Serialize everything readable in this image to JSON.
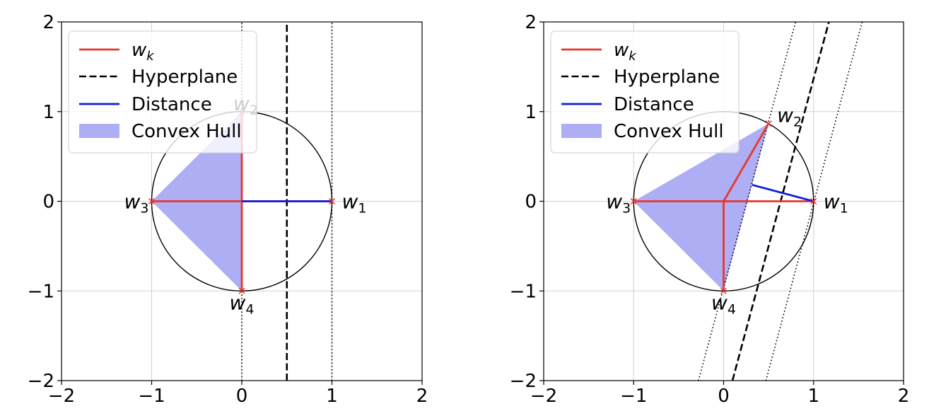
{
  "chart_data": [
    {
      "type": "line",
      "xlim": [
        -2,
        2
      ],
      "ylim": [
        -2,
        2
      ],
      "xticks": [
        "−2",
        "−1",
        "0",
        "1",
        "2"
      ],
      "yticks": [
        "−2",
        "−1",
        "0",
        "1",
        "2"
      ],
      "grid": true,
      "legend_position": "top-left",
      "legend": [
        "w_k",
        "Hyperplane",
        "Distance",
        "Convex Hull"
      ],
      "unit_circle": {
        "center": [
          0,
          0
        ],
        "radius": 1
      },
      "points": [
        {
          "name": "w_1",
          "x": 1,
          "y": 0
        },
        {
          "name": "w_2",
          "x": 0,
          "y": 1
        },
        {
          "name": "w_3",
          "x": -1,
          "y": 0
        },
        {
          "name": "w_4",
          "x": 0,
          "y": -1
        }
      ],
      "hull": [
        [
          0,
          1
        ],
        [
          -1,
          0
        ],
        [
          0,
          -1
        ]
      ],
      "hyperplane": {
        "p1": [
          0.5,
          -2
        ],
        "p2": [
          0.5,
          2
        ]
      },
      "margins": [
        {
          "p1": [
            0,
            -2
          ],
          "p2": [
            0,
            2
          ]
        },
        {
          "p1": [
            1,
            -2
          ],
          "p2": [
            1,
            2
          ]
        }
      ],
      "distance": {
        "from": [
          1,
          0
        ],
        "to": [
          0,
          0
        ]
      }
    },
    {
      "type": "line",
      "xlim": [
        -2,
        2
      ],
      "ylim": [
        -2,
        2
      ],
      "xticks": [
        "−2",
        "−1",
        "0",
        "1",
        "2"
      ],
      "yticks": [
        "−2",
        "−1",
        "0",
        "1",
        "2"
      ],
      "grid": true,
      "legend_position": "top-left",
      "legend": [
        "w_k",
        "Hyperplane",
        "Distance",
        "Convex Hull"
      ],
      "unit_circle": {
        "center": [
          0,
          0
        ],
        "radius": 1
      },
      "points": [
        {
          "name": "w_1",
          "x": 1,
          "y": 0
        },
        {
          "name": "w_2",
          "x": 0.5,
          "y": 0.866
        },
        {
          "name": "w_3",
          "x": -1,
          "y": 0
        },
        {
          "name": "w_4",
          "x": 0,
          "y": -1
        }
      ],
      "hull": [
        [
          0.5,
          0.866
        ],
        [
          -1,
          0
        ],
        [
          0,
          -1
        ]
      ],
      "hyperplane": {
        "p1": [
          0.098,
          -2
        ],
        "p2": [
          1.17,
          2
        ]
      },
      "margins": [
        {
          "p1": [
            -0.28,
            -2
          ],
          "p2": [
            0.8,
            2
          ]
        },
        {
          "p1": [
            0.47,
            -2
          ],
          "p2": [
            1.54,
            2
          ]
        }
      ],
      "distance": {
        "from": [
          1,
          0
        ],
        "to": [
          0.317,
          0.183
        ]
      }
    }
  ]
}
